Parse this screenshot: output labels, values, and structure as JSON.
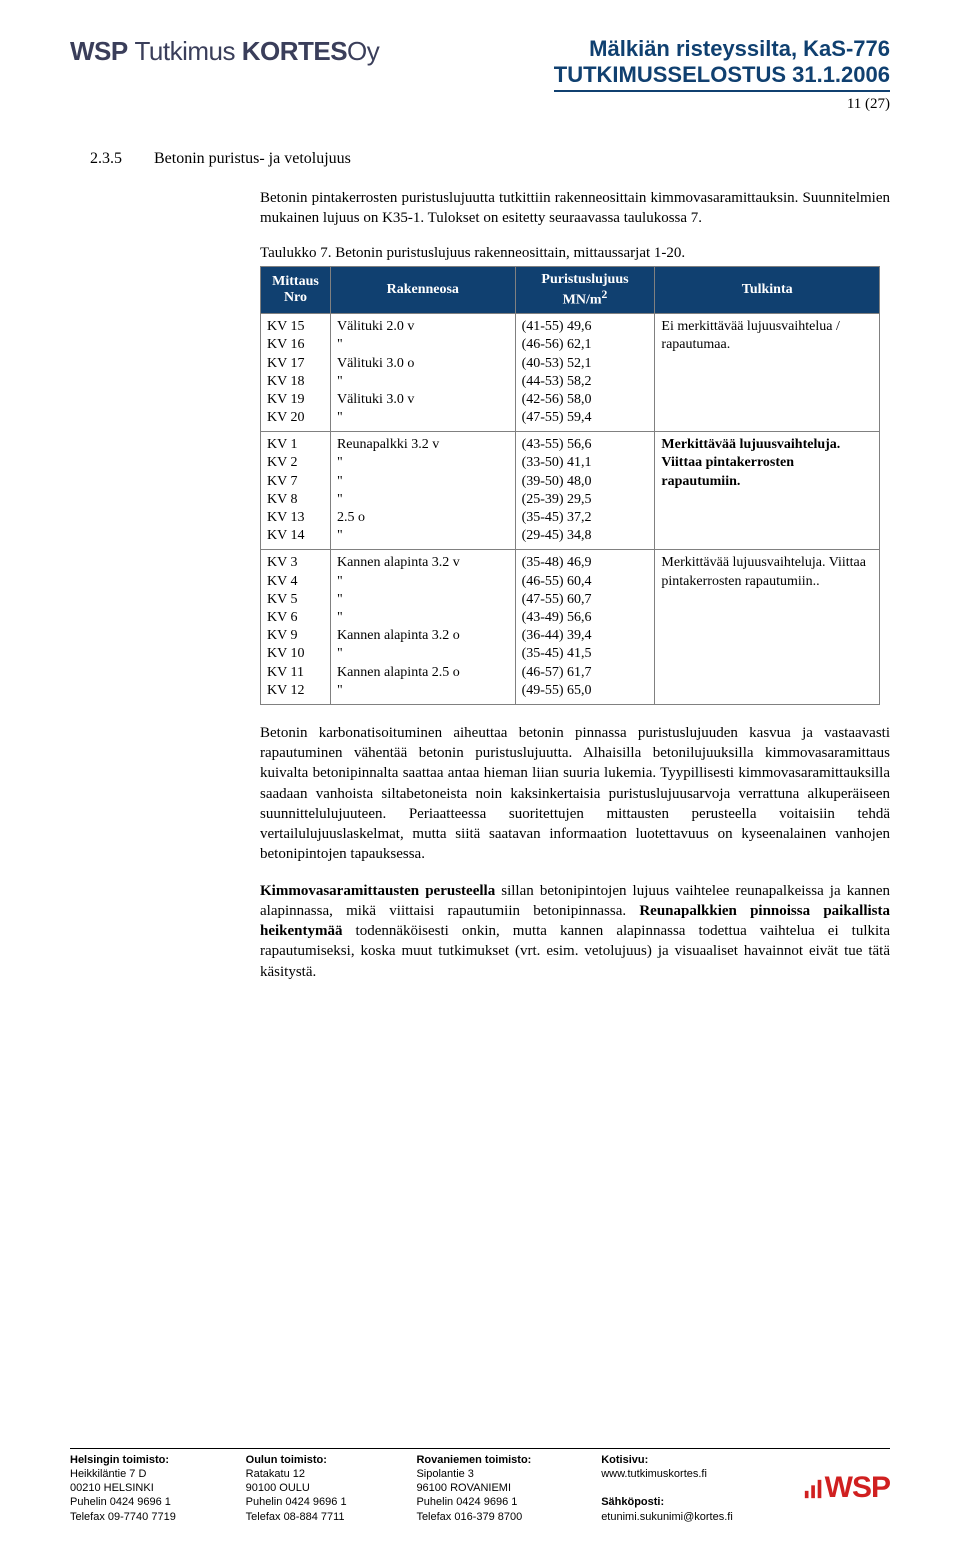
{
  "header": {
    "logo_text": "WSP Tutkimus KORTES Oy",
    "title1": "Mälkiän risteyssilta, KaS-776",
    "title2": "TUTKIMUSSELOSTUS 31.1.2006",
    "page_num": "11 (27)"
  },
  "section": {
    "num": "2.3.5",
    "title": "Betonin puristus- ja vetolujuus"
  },
  "intro_para": "Betonin pintakerrosten puristuslujuutta tutkittiin rakenneosittain kimmovasaramittauksin. Suunnitelmien mukainen lujuus on K35-1. Tulokset on esitetty seuraavassa taulukossa 7.",
  "table_caption": "Taulukko 7. Betonin puristuslujuus rakenneosittain, mittaussarjat 1-20.",
  "table": {
    "headers": [
      "Mittaus Nro",
      "Rakenneosa",
      "Puristuslujuus MN/m²",
      "Tulkinta"
    ],
    "groups": [
      {
        "mittaus": [
          "KV 15",
          "KV 16",
          "KV 17",
          "KV 18",
          "KV 19",
          "KV 20"
        ],
        "rakenne": [
          "Välituki 2.0 v",
          "\"",
          "Välituki 3.0 o",
          "\"",
          "Välituki 3.0 v",
          "\""
        ],
        "lujuus": [
          "(41-55) 49,6",
          "(46-56) 62,1",
          "(40-53) 52,1",
          "(44-53) 58,2",
          "(42-56) 58,0",
          "(47-55) 59,4"
        ],
        "tulkinta": "Ei merkittävää lujuusvaihtelua / rapautumaa."
      },
      {
        "mittaus": [
          "KV 1",
          "KV 2",
          "KV 7",
          "KV 8",
          "KV 13",
          "KV 14"
        ],
        "rakenne": [
          "Reunapalkki 3.2 v",
          "\"",
          "\"",
          "\"",
          "2.5 o",
          "\""
        ],
        "lujuus": [
          "(43-55) 56,6",
          "(33-50) 41,1",
          "(39-50) 48,0",
          "(25-39) 29,5",
          "(35-45) 37,2",
          "(29-45) 34,8"
        ],
        "tulkinta": "<b>Merkittävää lujuusvaihteluja. Viittaa pintakerrosten rapautumiin.</b>"
      },
      {
        "mittaus": [
          "KV 3",
          "KV 4",
          "KV 5",
          "KV 6",
          "KV 9",
          "KV 10",
          "KV 11",
          "KV 12"
        ],
        "rakenne": [
          "Kannen alapinta 3.2 v",
          "\"",
          "\"",
          "\"",
          "Kannen alapinta 3.2 o",
          "\"",
          "Kannen alapinta 2.5 o",
          "\""
        ],
        "lujuus": [
          "(35-48) 46,9",
          "(46-55) 60,4",
          "(47-55) 60,7",
          "(43-49) 56,6",
          "(36-44) 39,4",
          "(35-45) 41,5",
          "(46-57) 61,7",
          "(49-55) 65,0"
        ],
        "tulkinta": "Merkittävää lujuusvaihteluja. Viittaa pintakerrosten rapautumiin.."
      }
    ]
  },
  "para2": "Betonin karbonatisoituminen aiheuttaa betonin pinnassa puristuslujuuden kasvua ja vastaavasti rapautuminen vähentää betonin puristuslujuutta. Alhaisilla betonilujuuksilla kimmovasaramittaus kuivalta betonipinnalta saattaa antaa hieman liian suuria lukemia. Tyypillisesti kimmovasaramittauksilla saadaan vanhoista siltabetoneista noin kaksinkertaisia puristuslujuusarvoja verrattuna alkuperäiseen suunnittelulujuuteen. Periaatteessa suoritettujen mittausten perusteella voitaisiin tehdä vertailulujuuslaskelmat, mutta siitä saatavan informaation luotettavuus on kyseenalainen vanhojen betonipintojen tapauksessa.",
  "para3_bold1": "Kimmovasaramittausten perusteella",
  "para3_text1": " sillan betonipintojen lujuus vaihtelee reunapalkeissa ja kannen alapinnassa, mikä viittaisi rapautumiin betonipinnassa. ",
  "para3_bold2": "Reunapalkkien pinnoissa paikallista heikentymää",
  "para3_text2": " todennäköisesti onkin, mutta kannen alapinnassa todettua vaihtelua ei tulkita rapautumiseksi, koska muut tutkimukset (vrt. esim. vetolujuus) ja visuaaliset havainnot eivät tue tätä käsitystä.",
  "footer": {
    "cols": [
      {
        "bold": "Helsingin toimisto:",
        "lines": [
          "Heikkiläntie 7 D",
          "00210 HELSINKI",
          "Puhelin 0424 9696 1",
          "Telefax 09-7740 7719"
        ]
      },
      {
        "bold": "Oulun toimisto:",
        "lines": [
          "Ratakatu 12",
          "90100 OULU",
          "Puhelin 0424 9696 1",
          "Telefax 08-884 7711"
        ]
      },
      {
        "bold": "Rovaniemen toimisto:",
        "lines": [
          "Sipolantie 3",
          "96100 ROVANIEMI",
          "Puhelin 0424 9696 1",
          "Telefax 016-379 8700"
        ]
      },
      {
        "bold": "Kotisivu:",
        "lines": [
          "www.tutkimuskortes.fi",
          "",
          "<b>Sähköposti:</b>",
          "etunimi.sukunimi@kortes.fi"
        ]
      }
    ],
    "logo": "WSP"
  }
}
